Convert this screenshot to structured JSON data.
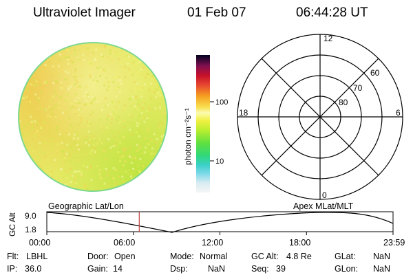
{
  "header": {
    "title": "Ultraviolet Imager",
    "date": "01 Feb 07",
    "time": "06:44:28 UT"
  },
  "colorbar": {
    "unit_label": "photon cm⁻²s⁻¹",
    "ticks": [
      "100",
      "10"
    ],
    "scale": "log"
  },
  "polar_plot": {
    "mlt_labels": {
      "top": "12",
      "left": "18",
      "right": "6",
      "bottom": "0"
    },
    "lat_labels": [
      "60",
      "70",
      "80"
    ]
  },
  "timeline": {
    "y_label": "GC Alt",
    "y_ticks": [
      "9.0",
      "1.8"
    ],
    "left_caption": "Geographic Lat/Lon",
    "right_caption": "Apex  MLat/MLT",
    "x_ticks": [
      "00:00",
      "06:00",
      "12:00",
      "18:00",
      "23:59"
    ],
    "marker_time": "06:44"
  },
  "info": {
    "flt": {
      "label": "Flt:",
      "value": "LBHL"
    },
    "ip": {
      "label": "IP:",
      "value": "36.0"
    },
    "door": {
      "label": "Door:",
      "value": "Open"
    },
    "gain": {
      "label": "Gain:",
      "value": "14"
    },
    "mode": {
      "label": "Mode:",
      "value": "Normal"
    },
    "dsp": {
      "label": "Dsp:",
      "value": "NaN"
    },
    "gcalt": {
      "label": "GC Alt:",
      "value": "4.8 Re"
    },
    "seq": {
      "label": "Seq:",
      "value": "39"
    },
    "glat": {
      "label": "GLat:",
      "value": "NaN"
    },
    "glon": {
      "label": "GLon:",
      "value": "NaN"
    }
  },
  "colors": {
    "disk_base": "#e8ec6a",
    "disk_orange": "#f2cc55",
    "disk_green": "#c9e84a",
    "disk_edge": "#6fd38a",
    "marker": "#c04040"
  }
}
